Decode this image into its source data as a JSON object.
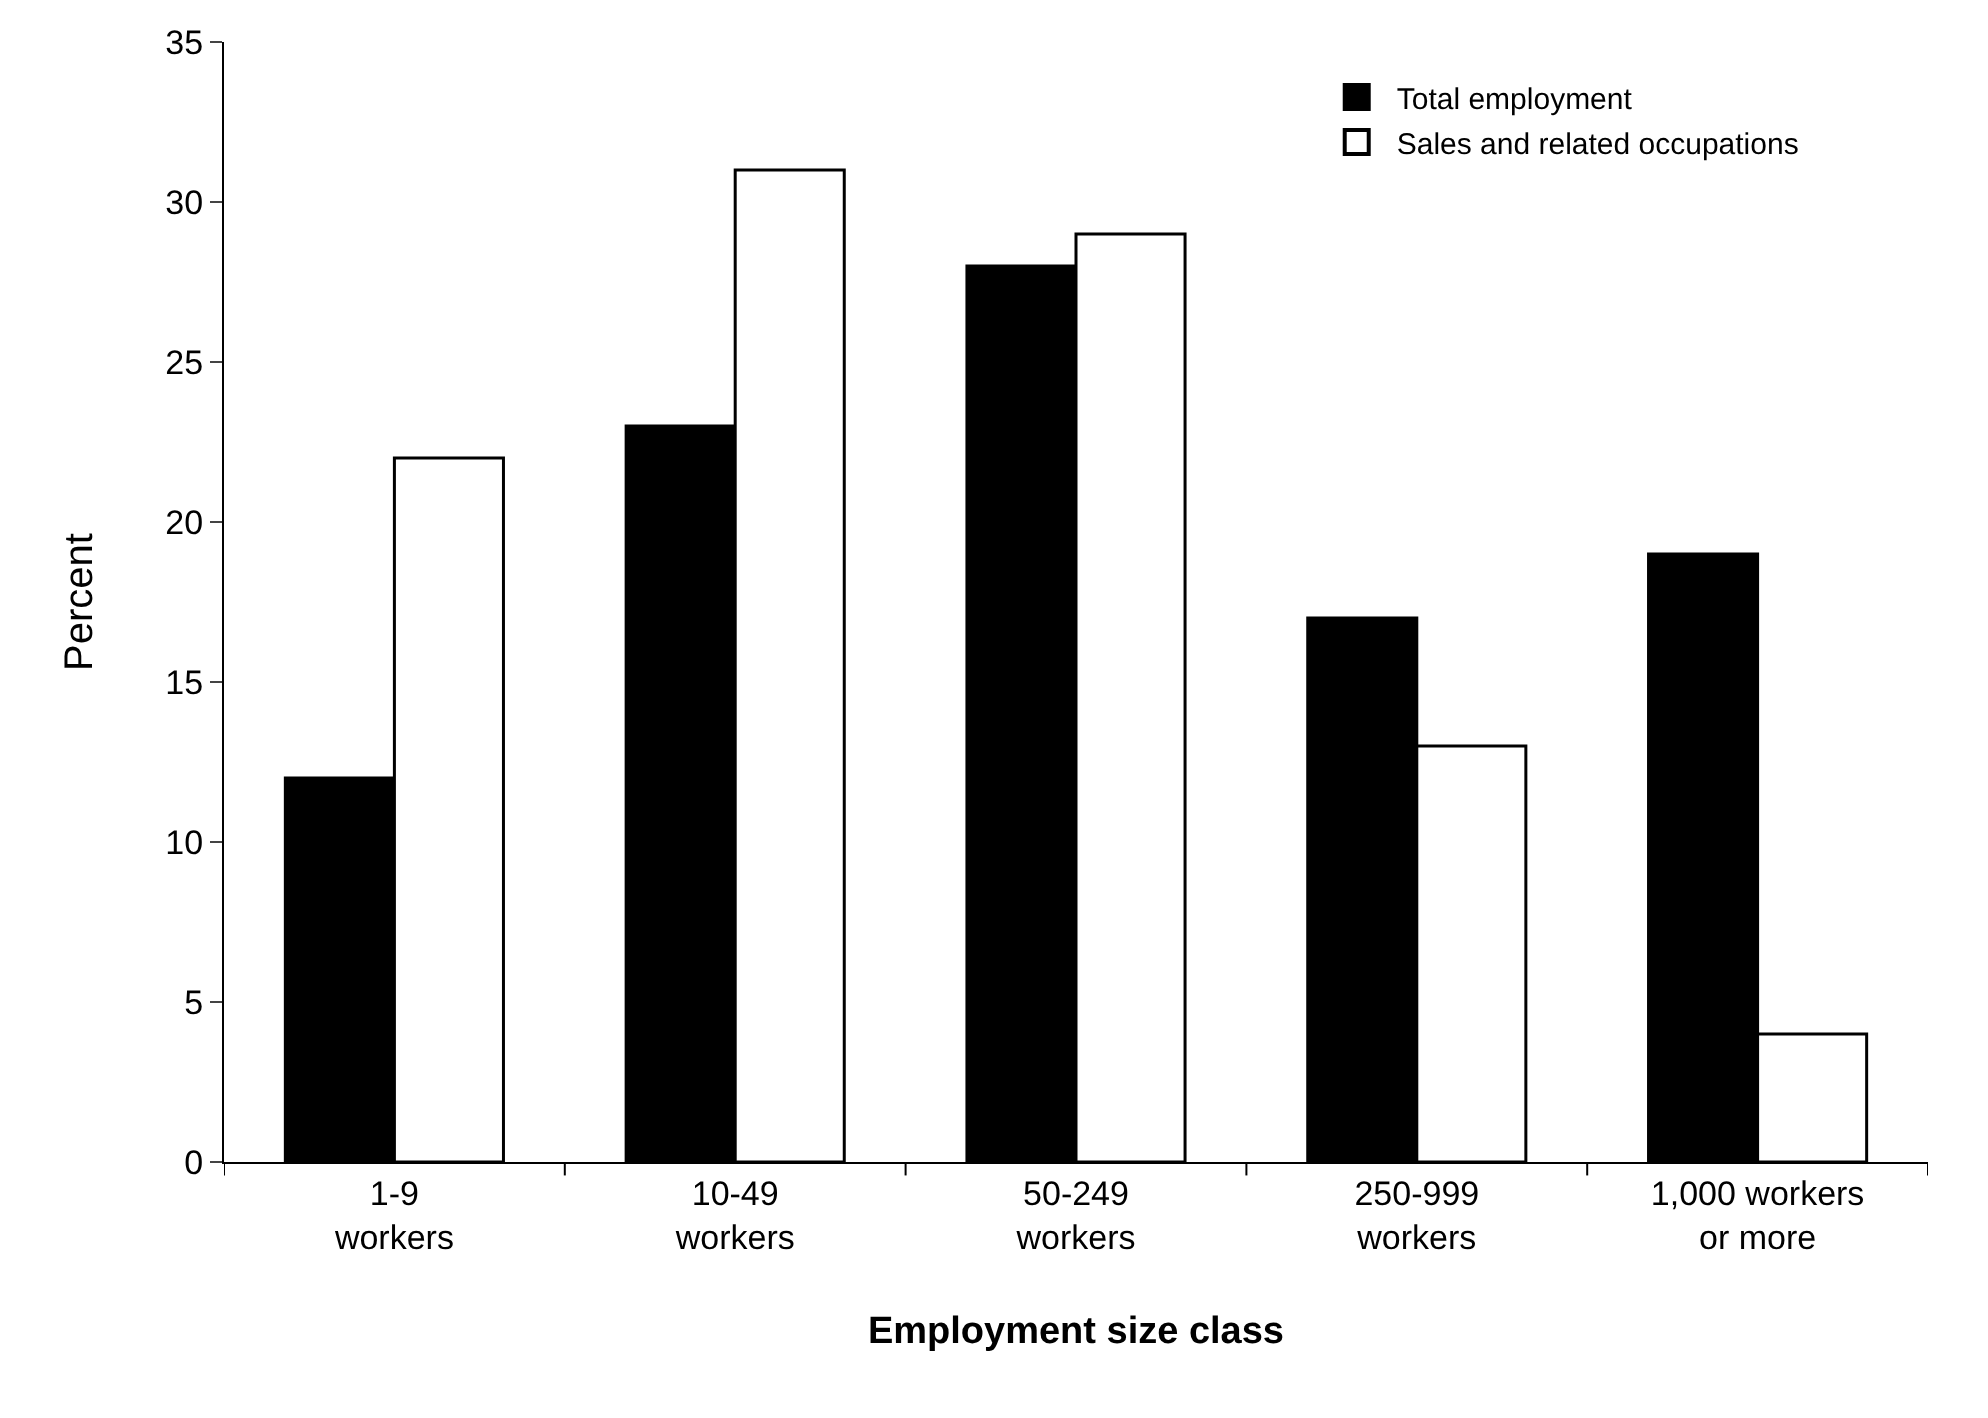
{
  "chart_data": {
    "type": "bar",
    "xlabel": "Employment size class",
    "ylabel": "Percent",
    "categories": [
      "1-9\nworkers",
      "10-49\nworkers",
      "50-249\nworkers",
      "250-999\nworkers",
      "1,000 workers\nor more"
    ],
    "series": [
      {
        "name": "Total employment",
        "color": "#000000",
        "values": [
          12,
          23,
          28,
          17,
          19
        ]
      },
      {
        "name": "Sales and related occupations",
        "color": "#ffffff",
        "values": [
          22,
          31,
          29,
          13,
          4
        ]
      }
    ],
    "ylim": [
      0,
      35
    ],
    "yticks": [
      0,
      5,
      10,
      15,
      20,
      25,
      30,
      35
    ],
    "grid": false,
    "legend": "top right"
  }
}
